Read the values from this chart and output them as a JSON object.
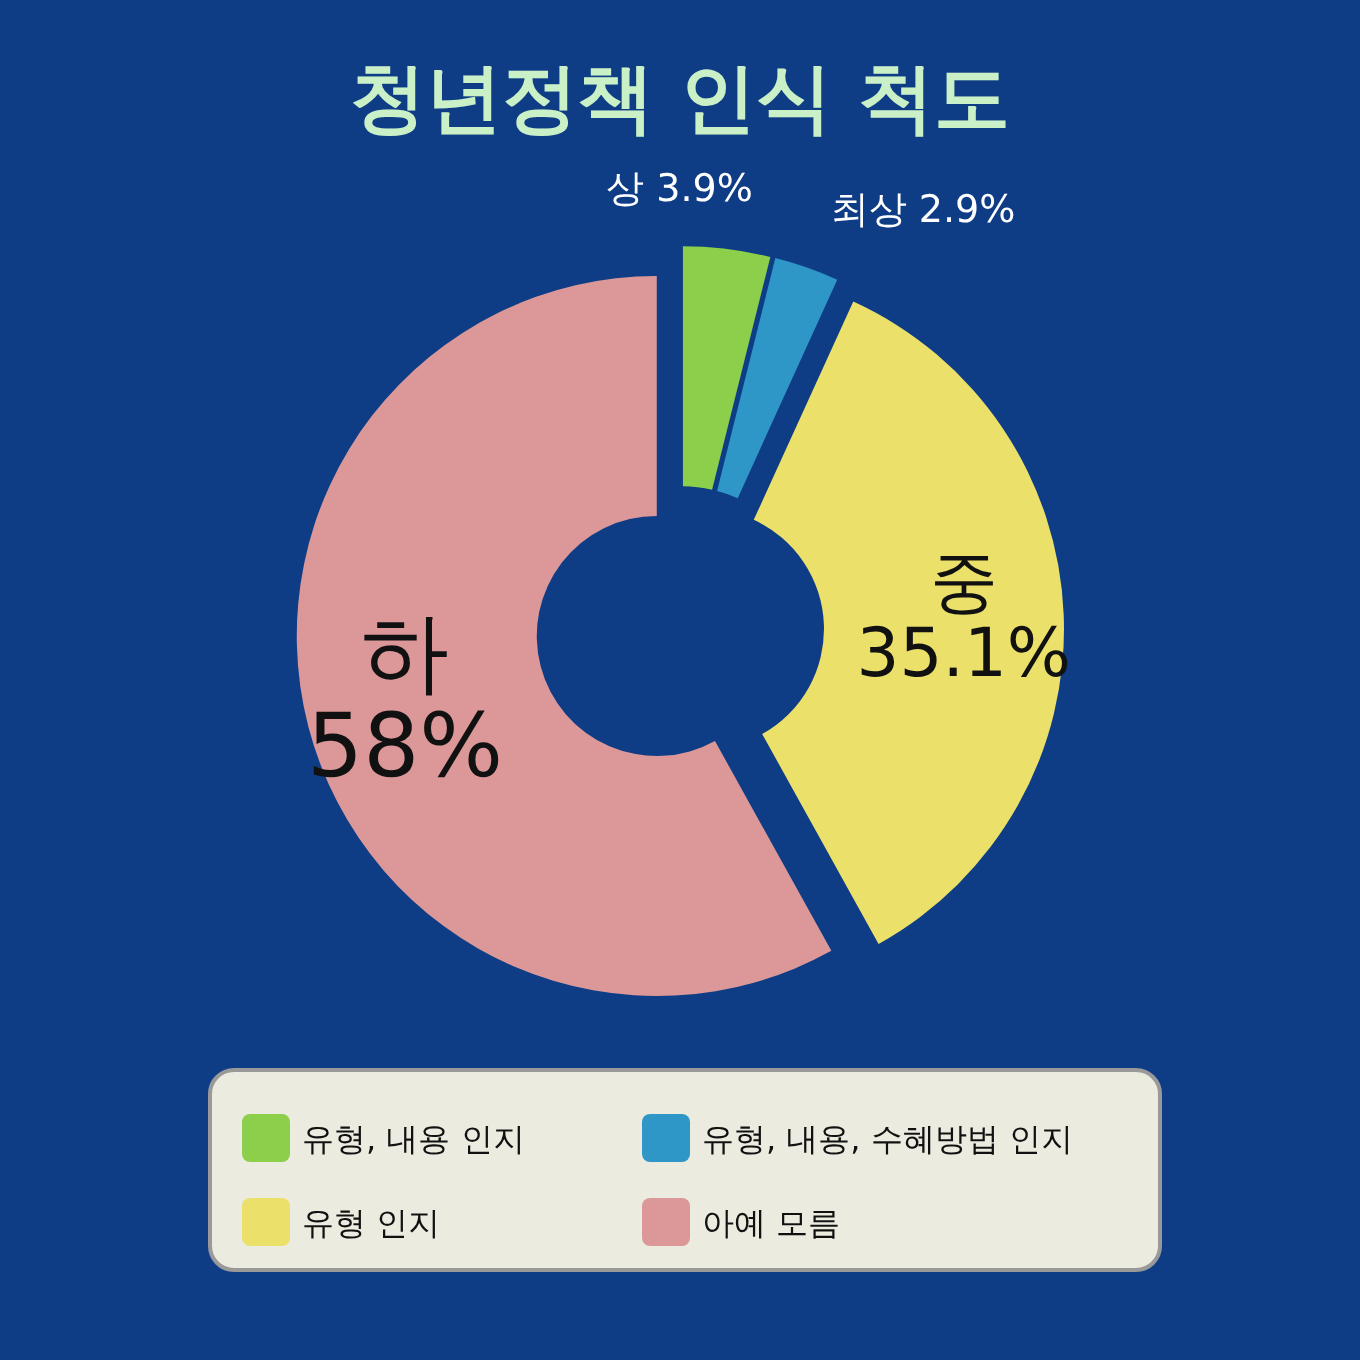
{
  "chart_data": {
    "type": "donut",
    "title": "청년정책 인식 척도",
    "categories": [
      "유형, 내용 인지",
      "유형, 내용, 수혜방법 인지",
      "유형 인지",
      "아예 모름"
    ],
    "values": [
      3.9,
      2.9,
      35.1,
      58
    ],
    "value_labels": [
      "3.9%",
      "2.9%",
      "35.1%",
      "58%"
    ],
    "annotations": [
      "상",
      "최상",
      "중",
      "하"
    ],
    "colors": [
      "#8ccf4a",
      "#2f97c8",
      "#ebe06a",
      "#dc9898"
    ],
    "legend": "bottom"
  }
}
